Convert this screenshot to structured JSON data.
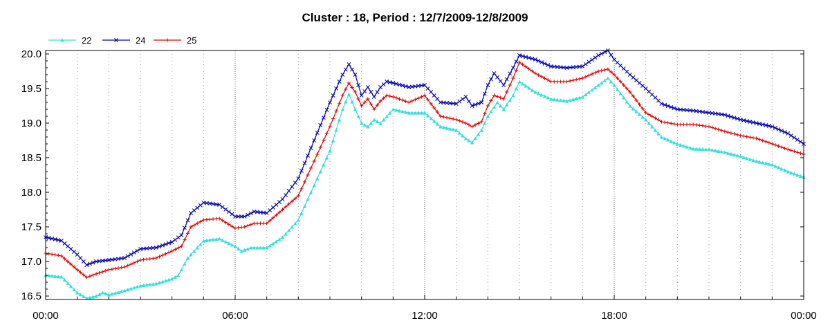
{
  "chart_data": {
    "type": "line",
    "title": "Cluster : 18, Period : 12/7/2009-12/8/2009",
    "xlabel": "",
    "ylabel": "",
    "x_ticks": [
      "00:00",
      "06:00",
      "12:00",
      "18:00",
      "00:00"
    ],
    "x_hours": [
      0,
      6,
      12,
      18,
      24
    ],
    "y_ticks": [
      "16.5",
      "17.0",
      "17.5",
      "18.0",
      "18.5",
      "19.0",
      "19.5",
      "20.0"
    ],
    "ylim": [
      16.45,
      20.05
    ],
    "xlim_hours": [
      0,
      24
    ],
    "grid": true,
    "legend_position": "top-left",
    "series": [
      {
        "name": "22",
        "color": "#33dddd",
        "marker": "triangle",
        "points": [
          [
            0,
            16.8
          ],
          [
            0.5,
            16.78
          ],
          [
            1.0,
            16.55
          ],
          [
            1.3,
            16.47
          ],
          [
            1.6,
            16.5
          ],
          [
            1.8,
            16.55
          ],
          [
            2.0,
            16.52
          ],
          [
            2.5,
            16.58
          ],
          [
            3.0,
            16.65
          ],
          [
            3.5,
            16.68
          ],
          [
            4.0,
            16.75
          ],
          [
            4.2,
            16.8
          ],
          [
            4.5,
            17.05
          ],
          [
            5.0,
            17.3
          ],
          [
            5.5,
            17.33
          ],
          [
            6.0,
            17.22
          ],
          [
            6.2,
            17.15
          ],
          [
            6.5,
            17.2
          ],
          [
            7.0,
            17.2
          ],
          [
            7.5,
            17.35
          ],
          [
            8.0,
            17.6
          ],
          [
            8.5,
            18.1
          ],
          [
            9.0,
            18.6
          ],
          [
            9.4,
            19.2
          ],
          [
            9.6,
            19.42
          ],
          [
            9.8,
            19.2
          ],
          [
            10.0,
            19.0
          ],
          [
            10.2,
            18.95
          ],
          [
            10.4,
            19.05
          ],
          [
            10.6,
            19.0
          ],
          [
            10.8,
            19.1
          ],
          [
            11.0,
            19.2
          ],
          [
            11.5,
            19.15
          ],
          [
            12.0,
            19.15
          ],
          [
            12.5,
            18.95
          ],
          [
            13.0,
            18.9
          ],
          [
            13.3,
            18.78
          ],
          [
            13.5,
            18.72
          ],
          [
            13.8,
            18.9
          ],
          [
            14.0,
            19.1
          ],
          [
            14.3,
            19.3
          ],
          [
            14.5,
            19.2
          ],
          [
            14.8,
            19.4
          ],
          [
            15.0,
            19.6
          ],
          [
            15.5,
            19.45
          ],
          [
            16.0,
            19.35
          ],
          [
            16.5,
            19.32
          ],
          [
            17.0,
            19.38
          ],
          [
            17.5,
            19.55
          ],
          [
            17.8,
            19.65
          ],
          [
            18.0,
            19.55
          ],
          [
            18.5,
            19.25
          ],
          [
            19.0,
            19.05
          ],
          [
            19.5,
            18.8
          ],
          [
            20.0,
            18.7
          ],
          [
            20.5,
            18.63
          ],
          [
            21.0,
            18.62
          ],
          [
            21.5,
            18.58
          ],
          [
            22.0,
            18.52
          ],
          [
            22.5,
            18.45
          ],
          [
            23.0,
            18.4
          ],
          [
            23.5,
            18.3
          ],
          [
            24.0,
            18.22
          ]
        ]
      },
      {
        "name": "24",
        "color": "#0000aa",
        "marker": "x",
        "points": [
          [
            0,
            17.35
          ],
          [
            0.5,
            17.3
          ],
          [
            1.0,
            17.1
          ],
          [
            1.3,
            16.95
          ],
          [
            1.6,
            17.0
          ],
          [
            2.0,
            17.02
          ],
          [
            2.5,
            17.05
          ],
          [
            3.0,
            17.18
          ],
          [
            3.5,
            17.2
          ],
          [
            4.0,
            17.28
          ],
          [
            4.3,
            17.38
          ],
          [
            4.6,
            17.7
          ],
          [
            5.0,
            17.85
          ],
          [
            5.5,
            17.82
          ],
          [
            6.0,
            17.65
          ],
          [
            6.3,
            17.65
          ],
          [
            6.6,
            17.72
          ],
          [
            7.0,
            17.7
          ],
          [
            7.5,
            17.9
          ],
          [
            8.0,
            18.2
          ],
          [
            8.5,
            18.75
          ],
          [
            9.0,
            19.3
          ],
          [
            9.4,
            19.7
          ],
          [
            9.6,
            19.85
          ],
          [
            9.8,
            19.7
          ],
          [
            10.0,
            19.4
          ],
          [
            10.2,
            19.52
          ],
          [
            10.4,
            19.38
          ],
          [
            10.6,
            19.52
          ],
          [
            10.8,
            19.6
          ],
          [
            11.0,
            19.58
          ],
          [
            11.5,
            19.52
          ],
          [
            12.0,
            19.55
          ],
          [
            12.5,
            19.3
          ],
          [
            13.0,
            19.28
          ],
          [
            13.3,
            19.38
          ],
          [
            13.5,
            19.25
          ],
          [
            13.8,
            19.3
          ],
          [
            14.0,
            19.55
          ],
          [
            14.2,
            19.72
          ],
          [
            14.5,
            19.55
          ],
          [
            14.8,
            19.8
          ],
          [
            15.0,
            19.98
          ],
          [
            15.5,
            19.92
          ],
          [
            16.0,
            19.82
          ],
          [
            16.5,
            19.8
          ],
          [
            17.0,
            19.82
          ],
          [
            17.5,
            19.98
          ],
          [
            17.8,
            20.05
          ],
          [
            18.0,
            19.92
          ],
          [
            18.5,
            19.7
          ],
          [
            19.0,
            19.5
          ],
          [
            19.5,
            19.28
          ],
          [
            20.0,
            19.2
          ],
          [
            20.5,
            19.18
          ],
          [
            21.0,
            19.15
          ],
          [
            21.5,
            19.12
          ],
          [
            22.0,
            19.05
          ],
          [
            22.5,
            19.0
          ],
          [
            23.0,
            18.95
          ],
          [
            23.5,
            18.85
          ],
          [
            24.0,
            18.7
          ]
        ]
      },
      {
        "name": "25",
        "color": "#dd0000",
        "marker": "plus",
        "points": [
          [
            0,
            17.12
          ],
          [
            0.5,
            17.08
          ],
          [
            1.0,
            16.88
          ],
          [
            1.3,
            16.77
          ],
          [
            1.6,
            16.82
          ],
          [
            2.0,
            16.88
          ],
          [
            2.5,
            16.92
          ],
          [
            3.0,
            17.02
          ],
          [
            3.5,
            17.05
          ],
          [
            4.0,
            17.15
          ],
          [
            4.3,
            17.22
          ],
          [
            4.6,
            17.5
          ],
          [
            5.0,
            17.6
          ],
          [
            5.5,
            17.62
          ],
          [
            6.0,
            17.48
          ],
          [
            6.3,
            17.5
          ],
          [
            6.6,
            17.55
          ],
          [
            7.0,
            17.55
          ],
          [
            7.5,
            17.75
          ],
          [
            8.0,
            17.95
          ],
          [
            8.5,
            18.45
          ],
          [
            9.0,
            18.95
          ],
          [
            9.4,
            19.4
          ],
          [
            9.6,
            19.58
          ],
          [
            9.8,
            19.45
          ],
          [
            10.0,
            19.25
          ],
          [
            10.2,
            19.35
          ],
          [
            10.4,
            19.2
          ],
          [
            10.6,
            19.32
          ],
          [
            10.8,
            19.4
          ],
          [
            11.0,
            19.38
          ],
          [
            11.5,
            19.3
          ],
          [
            12.0,
            19.4
          ],
          [
            12.5,
            19.1
          ],
          [
            13.0,
            19.05
          ],
          [
            13.3,
            19.0
          ],
          [
            13.5,
            18.95
          ],
          [
            13.8,
            19.02
          ],
          [
            14.0,
            19.25
          ],
          [
            14.2,
            19.4
          ],
          [
            14.5,
            19.35
          ],
          [
            14.8,
            19.65
          ],
          [
            15.0,
            19.88
          ],
          [
            15.5,
            19.72
          ],
          [
            16.0,
            19.6
          ],
          [
            16.5,
            19.6
          ],
          [
            17.0,
            19.65
          ],
          [
            17.5,
            19.75
          ],
          [
            17.8,
            19.78
          ],
          [
            18.0,
            19.7
          ],
          [
            18.5,
            19.45
          ],
          [
            19.0,
            19.15
          ],
          [
            19.5,
            19.02
          ],
          [
            20.0,
            18.98
          ],
          [
            20.5,
            18.98
          ],
          [
            21.0,
            18.95
          ],
          [
            21.5,
            18.88
          ],
          [
            22.0,
            18.82
          ],
          [
            22.5,
            18.78
          ],
          [
            23.0,
            18.7
          ],
          [
            23.5,
            18.62
          ],
          [
            24.0,
            18.55
          ]
        ]
      }
    ]
  }
}
